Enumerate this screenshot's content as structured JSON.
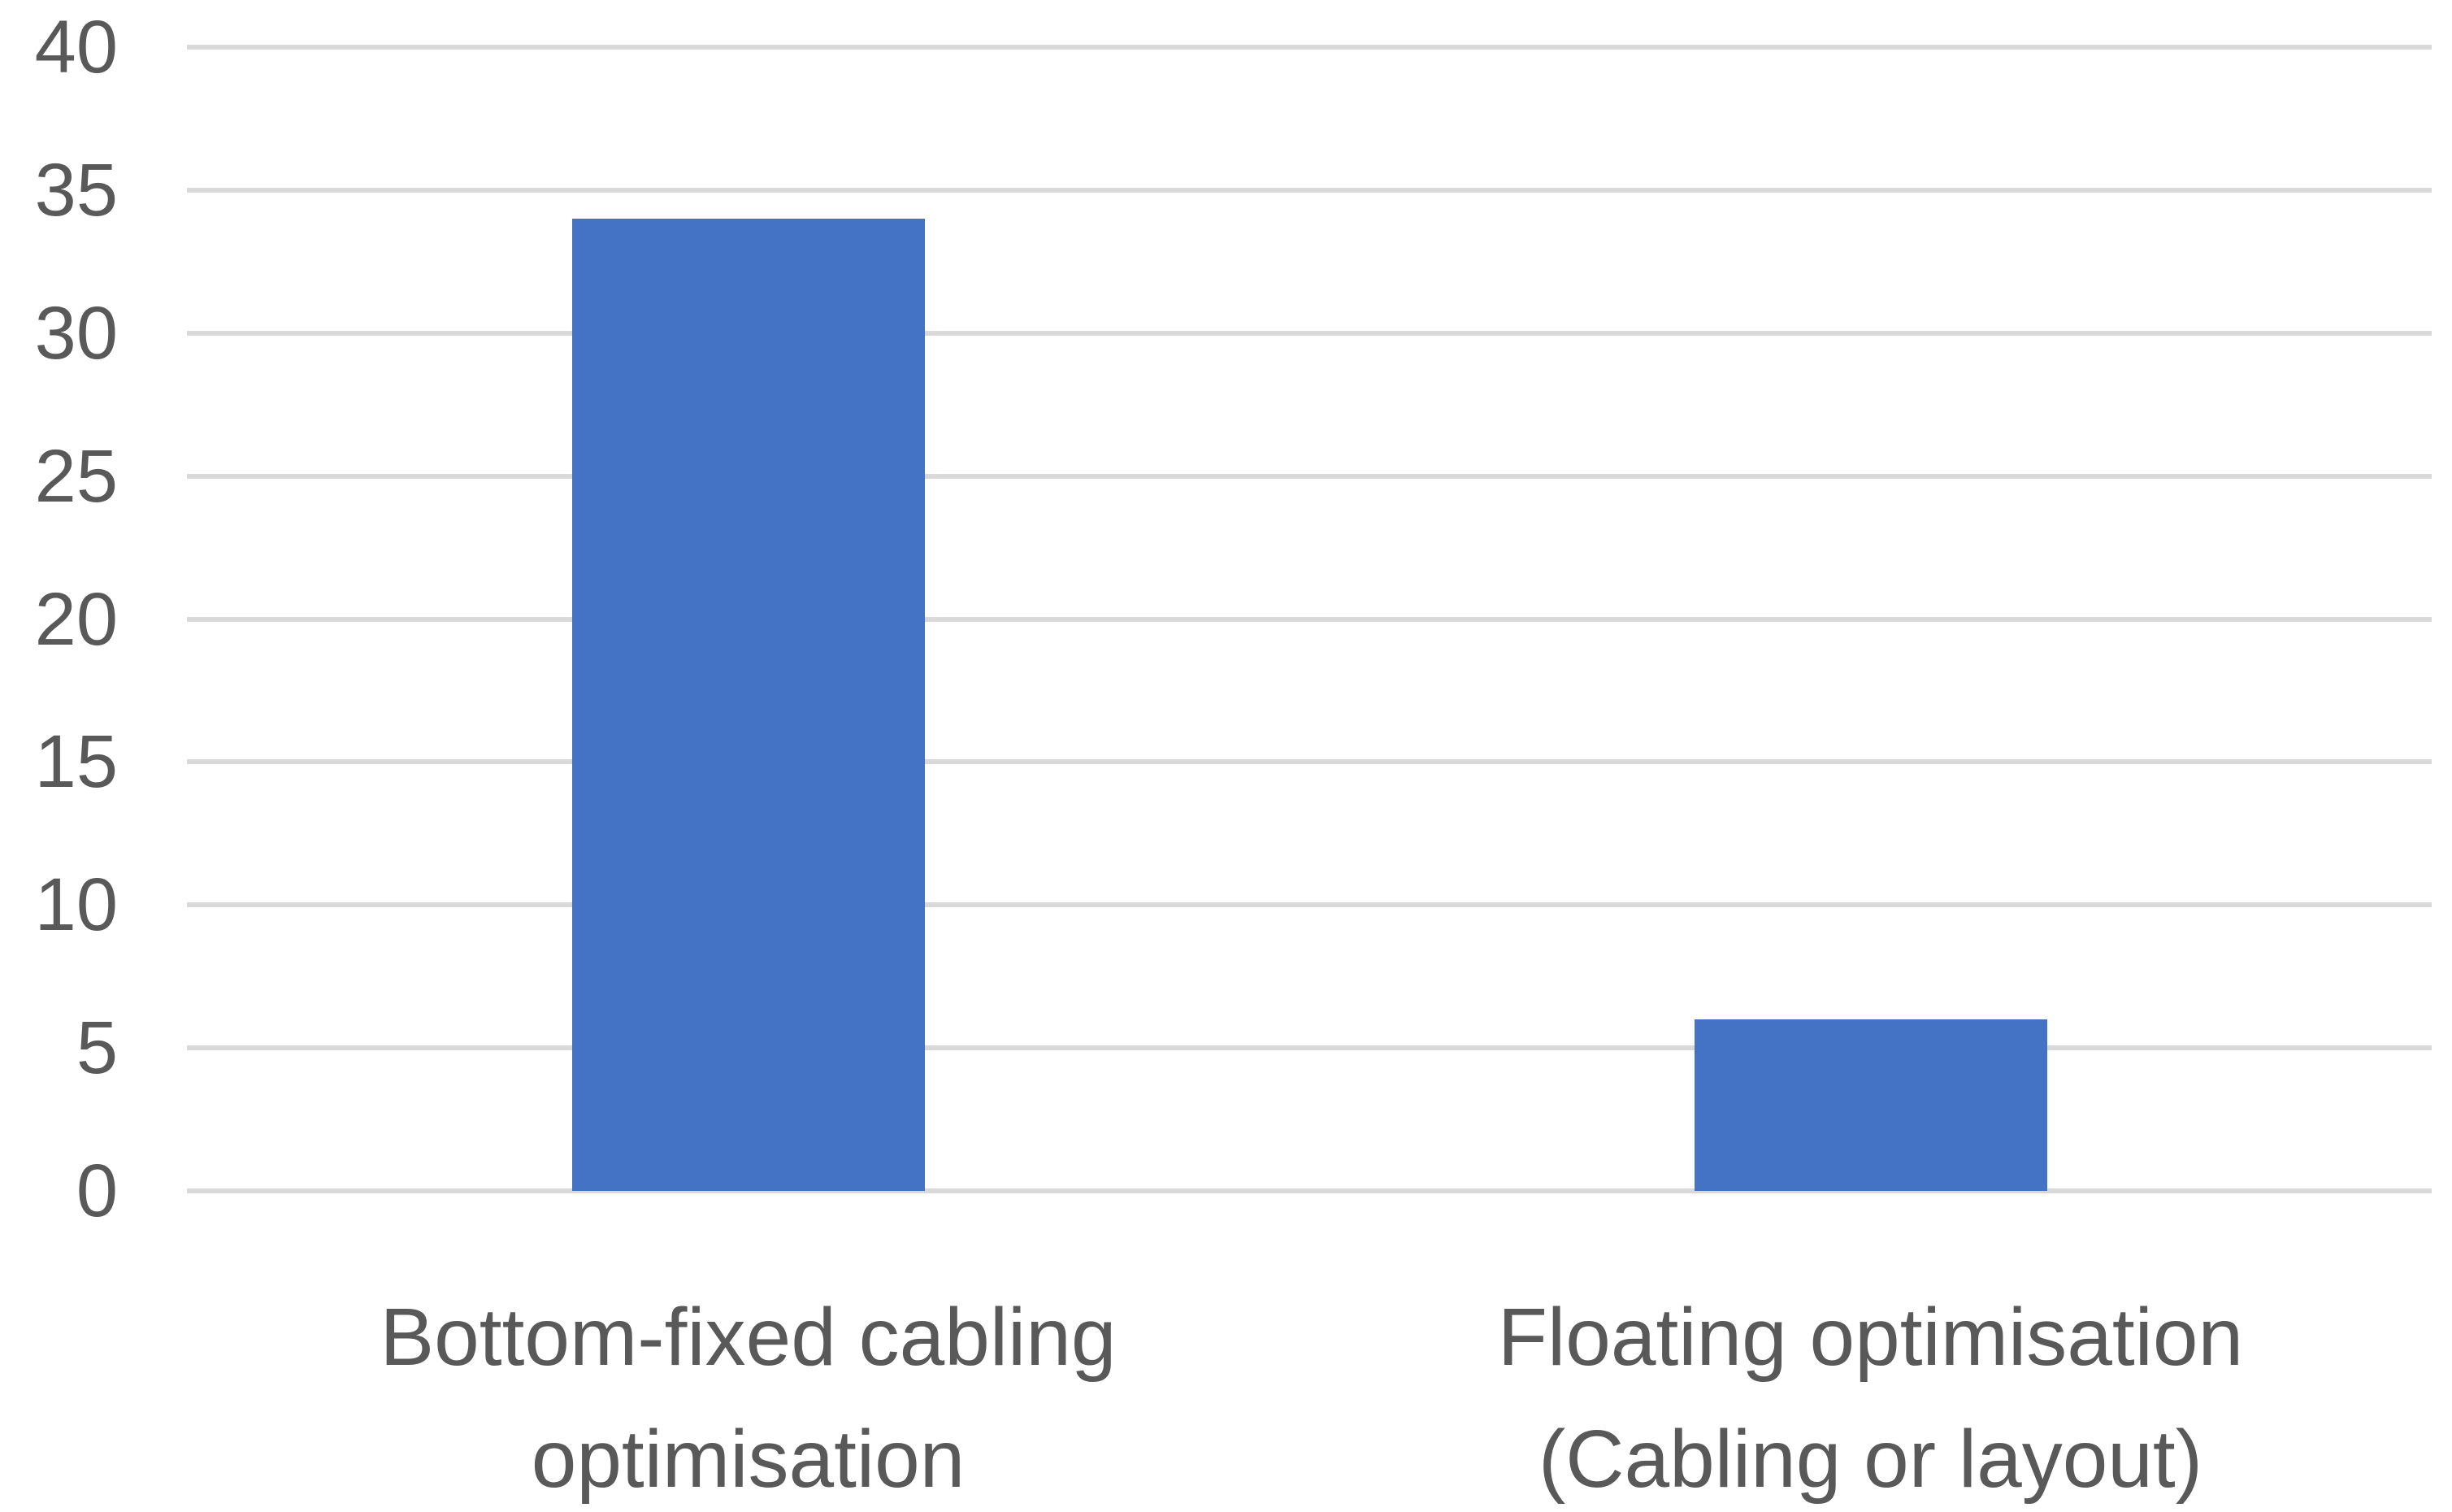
{
  "chart_data": {
    "type": "bar",
    "categories": [
      "Bottom-fixed cabling optimisation",
      "Floating optimisation (Cabling or layout)"
    ],
    "category_lines": [
      [
        "Bottom-fixed cabling",
        "optimisation"
      ],
      [
        "Floating optimisation",
        "(Cabling or layout)"
      ]
    ],
    "values": [
      34,
      6
    ],
    "yticks": [
      0,
      5,
      10,
      15,
      20,
      25,
      30,
      35,
      40
    ],
    "ylim": [
      0,
      40
    ],
    "grid": true,
    "legend": false,
    "title": "",
    "colors": {
      "bar": "#4472C4",
      "gridline": "#D9D9D9",
      "tick_label": "#595959",
      "category_label": "#595959"
    }
  }
}
